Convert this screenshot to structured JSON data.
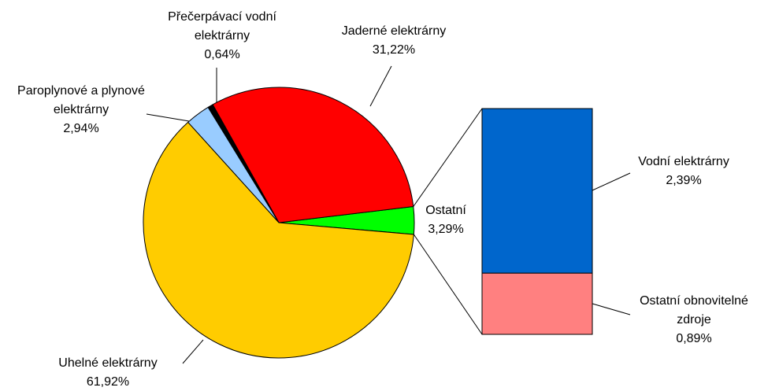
{
  "chart_data": {
    "type": "pie",
    "categories": [
      "Ostatní",
      "Jaderné elektrárny",
      "Přečerpávací vodní elektrárny",
      "Paroplynové a plynové elektrárny",
      "Uhelné elektrárny"
    ],
    "values": [
      3.29,
      31.22,
      0.64,
      2.94,
      61.92
    ],
    "value_labels": [
      "3,29%",
      "31,22%",
      "0,64%",
      "2,94%",
      "61,92%"
    ],
    "colors": [
      "#00ff00",
      "#ff0000",
      "#000000",
      "#99ccff",
      "#ffcc00"
    ],
    "breakdown": {
      "categories": [
        "Vodní elektrárny",
        "Ostatní obnovitelné zdroje"
      ],
      "values": [
        2.39,
        0.89
      ],
      "value_labels": [
        "2,39%",
        "0,89%"
      ],
      "colors": [
        "#0066cc",
        "#ff8080"
      ]
    }
  }
}
